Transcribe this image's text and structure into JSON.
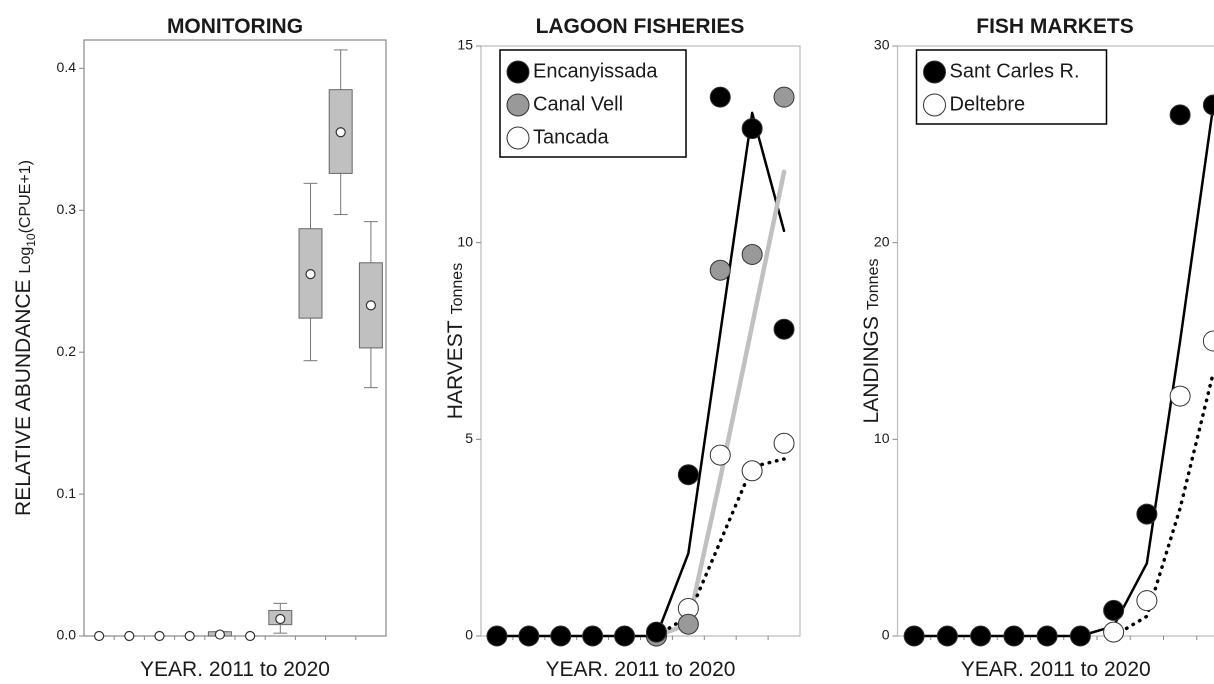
{
  "chart_data": [
    {
      "type": "box",
      "title": "MONITORING",
      "x_label": "YEAR. 2011 to 2020",
      "y_label": "RELATIVE ABUNDANCE",
      "y_unit": [
        "Log",
        "10",
        "(CPUE+1)"
      ],
      "categories": [
        null,
        null,
        null,
        null,
        null,
        null,
        null,
        null,
        null,
        null
      ],
      "color": "#c0c0c0",
      "min": [
        0,
        0,
        0,
        0,
        0,
        0,
        0.002,
        0.194,
        0.297,
        0.175
      ],
      "q1": [
        0,
        0,
        0,
        0,
        0,
        0,
        0.008,
        0.224,
        0.326,
        0.203
      ],
      "q3": [
        0,
        0,
        0,
        0,
        0.003,
        0,
        0.018,
        0.287,
        0.385,
        0.263
      ],
      "max": [
        0,
        0,
        0,
        0,
        0.003,
        0,
        0.023,
        0.319,
        0.413,
        0.292
      ],
      "mean": [
        0,
        0,
        0,
        0,
        0.001,
        0,
        0.012,
        0.255,
        0.355,
        0.233
      ],
      "ylim": [
        0,
        0.42
      ],
      "yticks": [
        {
          "value": 0,
          "label": "0.0"
        },
        0.1,
        0.2,
        0.3,
        0.4
      ]
    },
    {
      "type": "line",
      "title": "LAGOON FISHERIES",
      "x_label": "YEAR. 2011 to 2020",
      "y_label": "HARVEST",
      "y_unit": [
        "Tonnes"
      ],
      "legend": "upper left",
      "categories": [
        null,
        null,
        null,
        null,
        null,
        null,
        null,
        null,
        null,
        null
      ],
      "series": [
        {
          "name": "Encanyissada",
          "color": "#000000",
          "line_color": "#000000",
          "line_style": "solid",
          "values": [
            0,
            0,
            0,
            0,
            0,
            0.1,
            4.1,
            13.7,
            12.9,
            7.8
          ],
          "trend": [
            0,
            0,
            0,
            0,
            0,
            0,
            2.1,
            7.7,
            13.3,
            10.3
          ]
        },
        {
          "name": "Canal Vell",
          "color": "#999999",
          "line_color": "#c0c0c0",
          "line_style": "solid",
          "values": [
            null,
            null,
            null,
            null,
            null,
            0,
            0.3,
            9.3,
            9.7,
            13.7
          ],
          "trend": [
            null,
            null,
            null,
            null,
            null,
            0,
            0.3,
            4.0,
            7.9,
            11.8
          ]
        },
        {
          "name": "Tancada",
          "color": "#ffffff",
          "line_color": "#000000",
          "line_style": "dotted",
          "values": [
            null,
            null,
            null,
            null,
            null,
            0,
            0.7,
            4.6,
            4.2,
            4.9
          ],
          "trend": [
            null,
            null,
            null,
            null,
            null,
            0,
            0.5,
            2.4,
            4.3,
            4.5
          ]
        }
      ],
      "ylim": [
        0,
        15
      ],
      "yticks": [
        0,
        5,
        10,
        15
      ]
    },
    {
      "type": "line",
      "title": "FISH MARKETS",
      "x_label": "YEAR. 2011 to 2020",
      "y_label": "LANDINGS",
      "y_unit": [
        "Tonnes"
      ],
      "legend": "upper left",
      "categories": [
        null,
        null,
        null,
        null,
        null,
        null,
        null,
        null,
        null,
        null
      ],
      "series": [
        {
          "name": "Sant Carles R.",
          "color": "#000000",
          "line_color": "#000000",
          "line_style": "solid",
          "values": [
            0,
            0,
            0,
            0,
            0,
            0,
            1.3,
            6.2,
            26.5,
            27.0
          ],
          "trend": [
            0,
            0,
            0,
            0,
            0,
            0,
            0.5,
            3.7,
            15.0,
            27.0
          ]
        },
        {
          "name": "Deltebre",
          "color": "#ffffff",
          "line_color": "#000000",
          "line_style": "dotted",
          "values": [
            null,
            null,
            null,
            null,
            null,
            null,
            0.2,
            1.8,
            12.2,
            15.0
          ],
          "trend": [
            null,
            null,
            null,
            null,
            null,
            null,
            0,
            1.0,
            6.5,
            13.4
          ]
        }
      ],
      "ylim": [
        0,
        30
      ],
      "yticks": [
        0,
        10,
        20,
        30
      ]
    }
  ]
}
